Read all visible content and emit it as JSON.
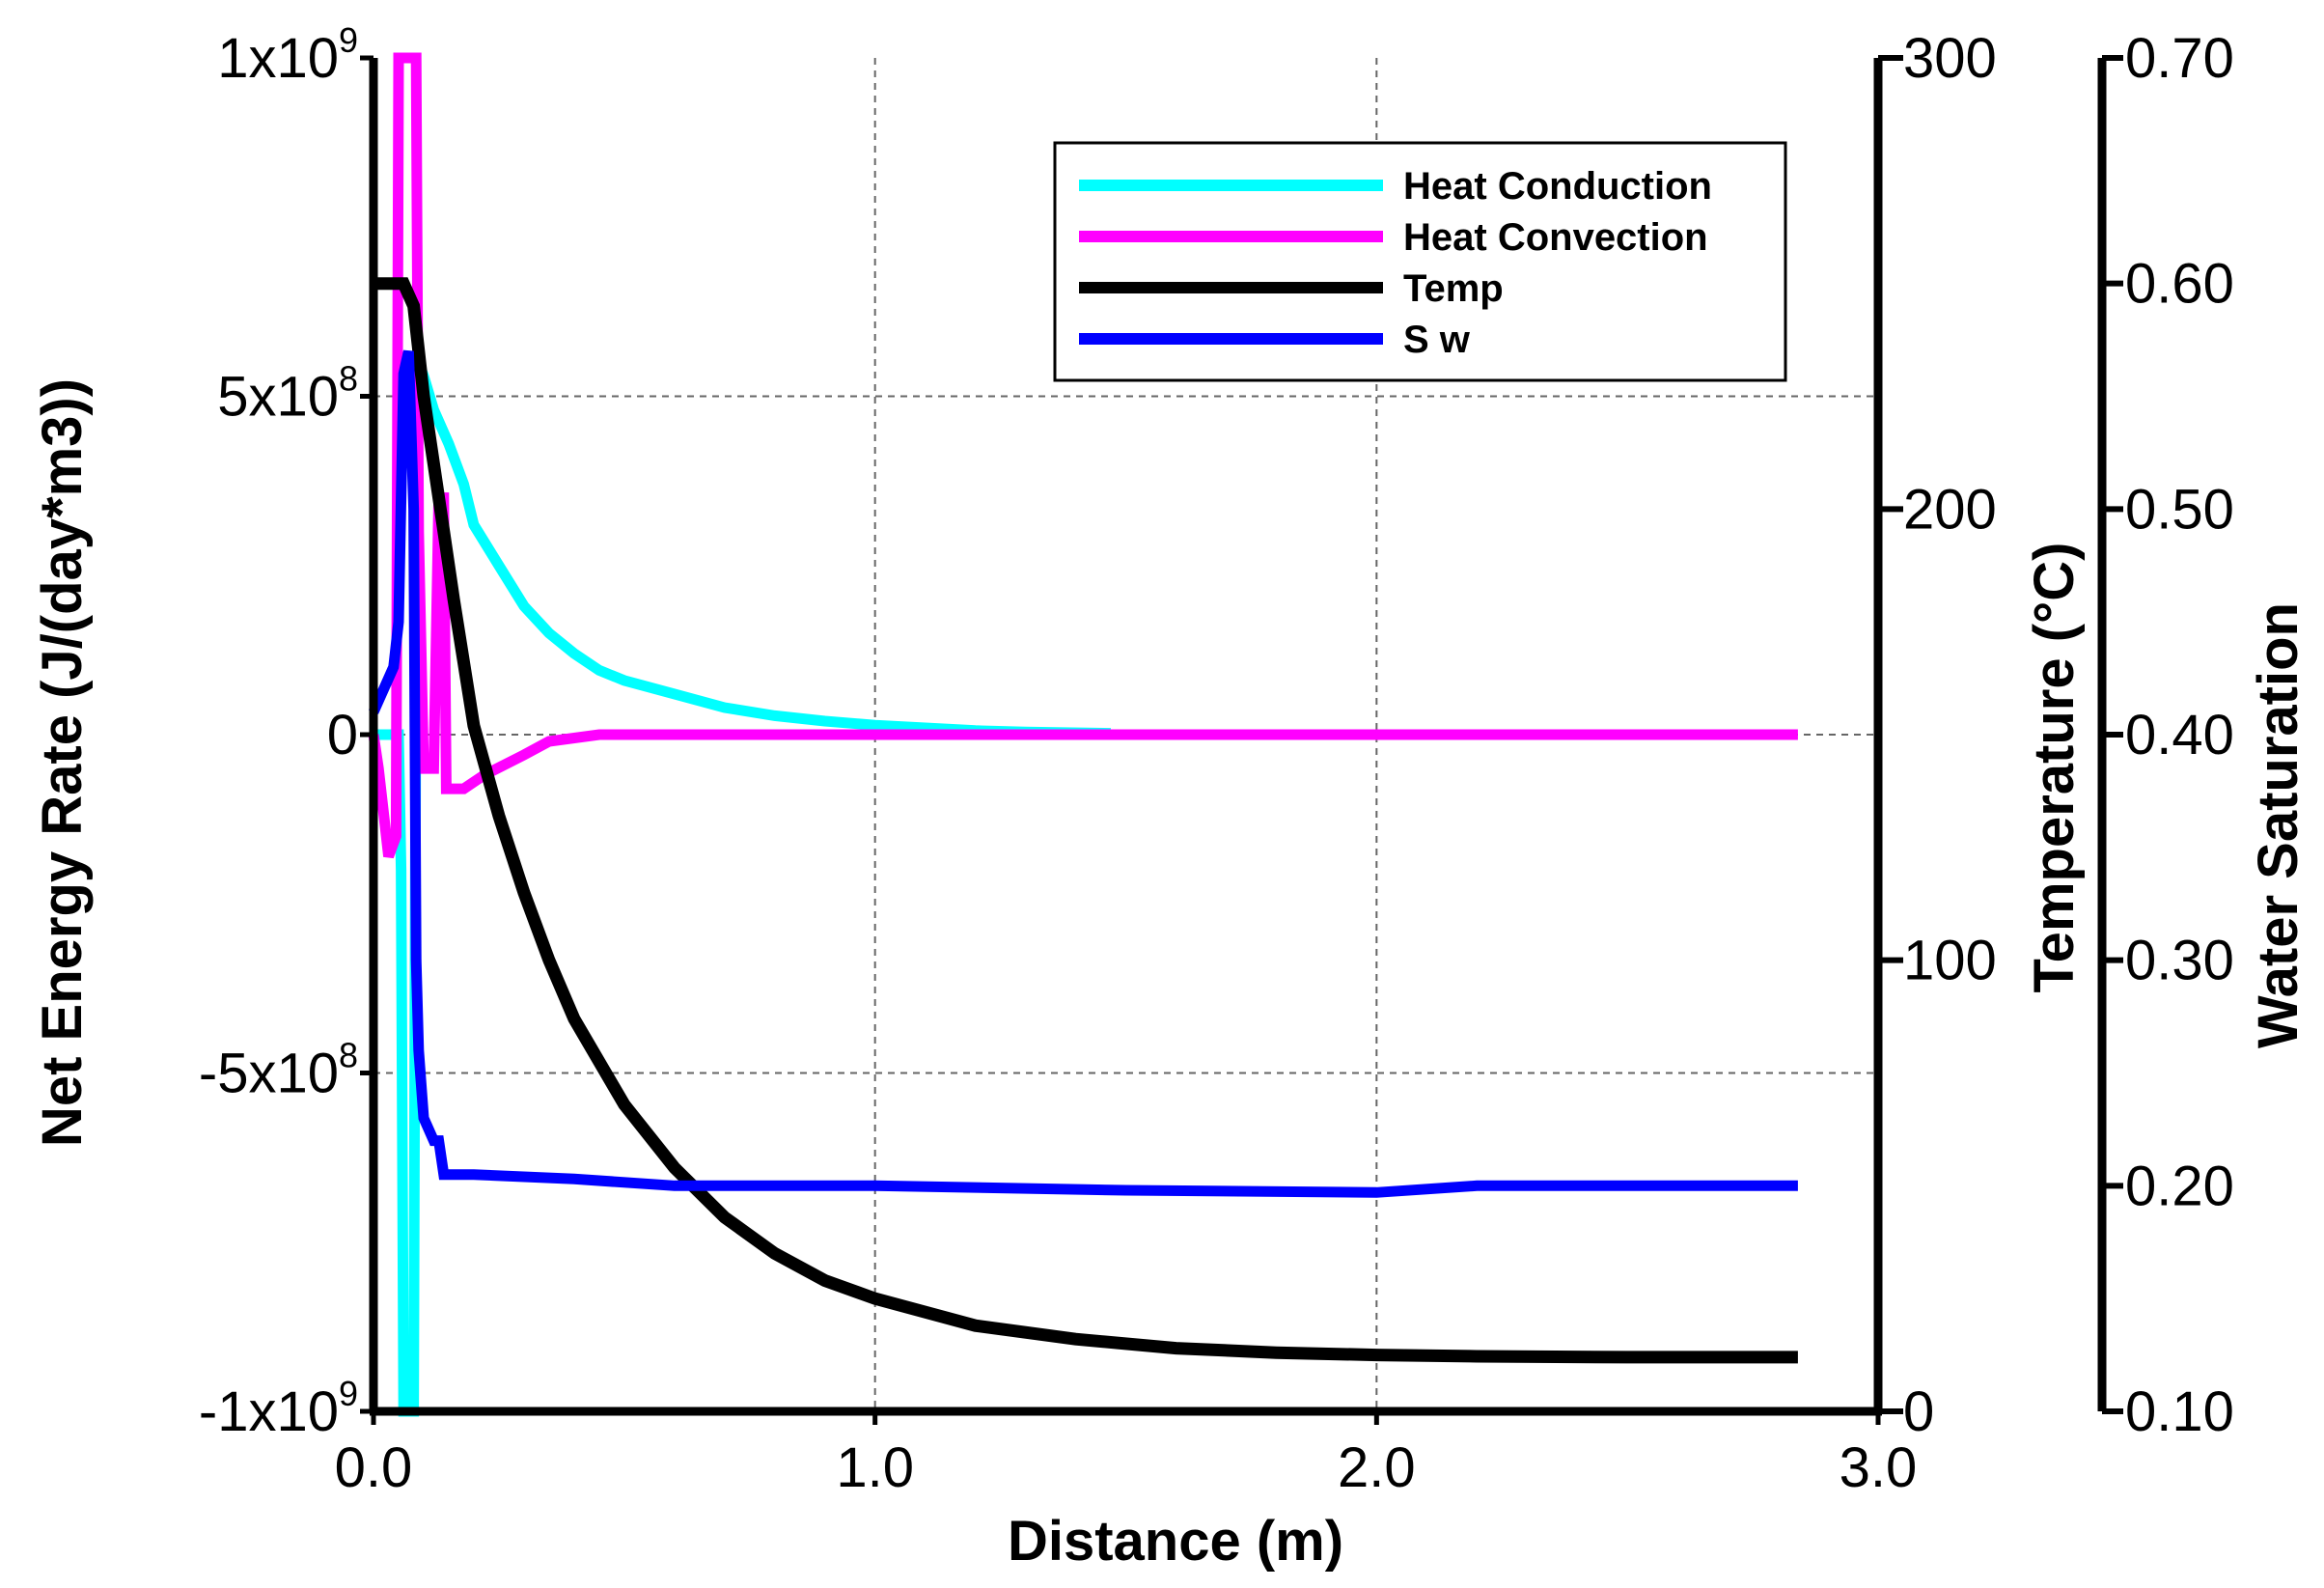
{
  "chart_data": {
    "type": "line",
    "xlabel": "Distance (m)",
    "x_ticks": [
      "0.0",
      "1.0",
      "2.0",
      "3.0"
    ],
    "xlim": [
      0,
      3
    ],
    "axes": {
      "energy": {
        "title": "Net Energy Rate (J/(day*m3))",
        "ylim": [
          -1000000000,
          1000000000
        ],
        "ticks": [
          {
            "value": 1000000000,
            "label": "1x10",
            "exp": "9"
          },
          {
            "value": 500000000,
            "label": "5x10",
            "exp": "8"
          },
          {
            "value": 0,
            "label": "0",
            "exp": ""
          },
          {
            "value": -500000000,
            "label": "-5x10",
            "exp": "8"
          },
          {
            "value": -1000000000,
            "label": "-1x10",
            "exp": "9"
          }
        ]
      },
      "temperature": {
        "title": "Temperature (°C)",
        "ylim": [
          0,
          300
        ],
        "ticks": [
          {
            "value": 300,
            "label": "300"
          },
          {
            "value": 200,
            "label": "200"
          },
          {
            "value": 100,
            "label": "100"
          },
          {
            "value": 0,
            "label": "0"
          }
        ]
      },
      "saturation": {
        "title": "Water Saturation",
        "ylim": [
          0.1,
          0.7
        ],
        "ticks": [
          {
            "value": 0.7,
            "label": "0.70"
          },
          {
            "value": 0.6,
            "label": "0.60"
          },
          {
            "value": 0.5,
            "label": "0.50"
          },
          {
            "value": 0.4,
            "label": "0.40"
          },
          {
            "value": 0.3,
            "label": "0.30"
          },
          {
            "value": 0.2,
            "label": "0.20"
          },
          {
            "value": 0.1,
            "label": "0.10"
          }
        ]
      }
    },
    "legend_position": "top-right",
    "series": [
      {
        "name": "Heat Conduction",
        "axis": "energy",
        "color": "#00ffff",
        "points": [
          [
            0,
            0
          ],
          [
            0.05,
            0
          ],
          [
            0.055,
            -200000000
          ],
          [
            0.06,
            -1000000000
          ],
          [
            0.08,
            -1000000000
          ],
          [
            0.085,
            200000000
          ],
          [
            0.09,
            550000000
          ],
          [
            0.1,
            530000000
          ],
          [
            0.12,
            480000000
          ],
          [
            0.15,
            430000000
          ],
          [
            0.18,
            370000000
          ],
          [
            0.2,
            310000000
          ],
          [
            0.25,
            250000000
          ],
          [
            0.3,
            190000000
          ],
          [
            0.35,
            150000000
          ],
          [
            0.4,
            120000000
          ],
          [
            0.45,
            95000000
          ],
          [
            0.5,
            80000000
          ],
          [
            0.6,
            60000000
          ],
          [
            0.7,
            40000000
          ],
          [
            0.8,
            28000000
          ],
          [
            0.9,
            20000000
          ],
          [
            1.0,
            14000000
          ],
          [
            1.1,
            10000000
          ],
          [
            1.2,
            6000000
          ],
          [
            1.3,
            4000000
          ],
          [
            1.47,
            2000000
          ]
        ]
      },
      {
        "name": "Heat Convection",
        "axis": "energy",
        "color": "#ff00ff",
        "points": [
          [
            0,
            0
          ],
          [
            0.01,
            -50000000
          ],
          [
            0.03,
            -180000000
          ],
          [
            0.045,
            -150000000
          ],
          [
            0.05,
            1000000000
          ],
          [
            0.085,
            1000000000
          ],
          [
            0.09,
            300000000
          ],
          [
            0.1,
            -50000000
          ],
          [
            0.12,
            -50000000
          ],
          [
            0.13,
            350000000
          ],
          [
            0.14,
            350000000
          ],
          [
            0.145,
            -80000000
          ],
          [
            0.18,
            -80000000
          ],
          [
            0.22,
            -60000000
          ],
          [
            0.3,
            -30000000
          ],
          [
            0.35,
            -10000000
          ],
          [
            0.45,
            0
          ],
          [
            1.0,
            0
          ],
          [
            2.0,
            0
          ],
          [
            2.84,
            0
          ]
        ]
      },
      {
        "name": "Temp",
        "axis": "temperature",
        "color": "#000000",
        "points": [
          [
            0,
            250
          ],
          [
            0.06,
            250
          ],
          [
            0.08,
            245
          ],
          [
            0.1,
            225
          ],
          [
            0.12,
            210
          ],
          [
            0.14,
            195
          ],
          [
            0.16,
            180
          ],
          [
            0.2,
            152
          ],
          [
            0.25,
            132
          ],
          [
            0.3,
            115
          ],
          [
            0.35,
            100
          ],
          [
            0.4,
            87
          ],
          [
            0.5,
            68
          ],
          [
            0.6,
            54
          ],
          [
            0.7,
            43
          ],
          [
            0.8,
            35
          ],
          [
            0.9,
            29
          ],
          [
            1.0,
            25
          ],
          [
            1.2,
            19
          ],
          [
            1.4,
            16
          ],
          [
            1.6,
            14
          ],
          [
            1.8,
            13
          ],
          [
            2.0,
            12.5
          ],
          [
            2.2,
            12.2
          ],
          [
            2.5,
            12
          ],
          [
            2.84,
            12
          ]
        ]
      },
      {
        "name": "S w",
        "axis": "saturation",
        "color": "#0000ff",
        "points": [
          [
            0,
            0.41
          ],
          [
            0.02,
            0.42
          ],
          [
            0.04,
            0.43
          ],
          [
            0.05,
            0.45
          ],
          [
            0.06,
            0.56
          ],
          [
            0.07,
            0.57
          ],
          [
            0.08,
            0.5
          ],
          [
            0.085,
            0.3
          ],
          [
            0.09,
            0.26
          ],
          [
            0.1,
            0.23
          ],
          [
            0.12,
            0.22
          ],
          [
            0.13,
            0.22
          ],
          [
            0.14,
            0.205
          ],
          [
            0.2,
            0.205
          ],
          [
            0.4,
            0.203
          ],
          [
            0.6,
            0.2
          ],
          [
            1.0,
            0.2
          ],
          [
            1.5,
            0.198
          ],
          [
            2.0,
            0.197
          ],
          [
            2.2,
            0.2
          ],
          [
            2.84,
            0.2
          ]
        ]
      }
    ]
  }
}
